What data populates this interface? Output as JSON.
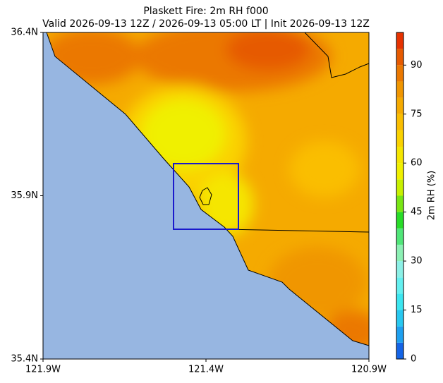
{
  "map": {
    "title": "Plaskett Fire: 2m RH f000",
    "subtitle": "Valid 2026-09-13 12Z / 2026-09-13 05:00 LT | Init 2026-09-13 12Z",
    "xlim": [
      -121.9,
      -120.9
    ],
    "ylim": [
      35.4,
      36.4
    ],
    "xticks": [
      {
        "value": -121.9,
        "label": "121.9W"
      },
      {
        "value": -121.4,
        "label": "121.4W"
      },
      {
        "value": -120.9,
        "label": "120.9W"
      }
    ],
    "yticks": [
      {
        "value": 35.4,
        "label": "35.4N"
      },
      {
        "value": 35.9,
        "label": "35.9N"
      },
      {
        "value": 36.4,
        "label": "36.4N"
      }
    ]
  },
  "colorbar": {
    "label": "2m RH (%)",
    "lim": [
      0,
      100
    ],
    "levels": [
      0,
      5,
      10,
      15,
      20,
      25,
      30,
      35,
      40,
      45,
      50,
      55,
      60,
      65,
      70,
      75,
      80,
      85,
      90,
      95,
      100
    ],
    "colors": [
      "#1464e6",
      "#1ea0f0",
      "#28c8f0",
      "#3ce6f0",
      "#64f0f0",
      "#8cf0e6",
      "#8cf0b4",
      "#50e678",
      "#28dc28",
      "#78e614",
      "#c8f000",
      "#f0f000",
      "#f5e600",
      "#fad200",
      "#fabe00",
      "#f5aa00",
      "#f09600",
      "#eb7800",
      "#e65a00",
      "#e63200"
    ],
    "ticks": [
      0,
      15,
      30,
      45,
      60,
      75,
      90
    ]
  }
}
